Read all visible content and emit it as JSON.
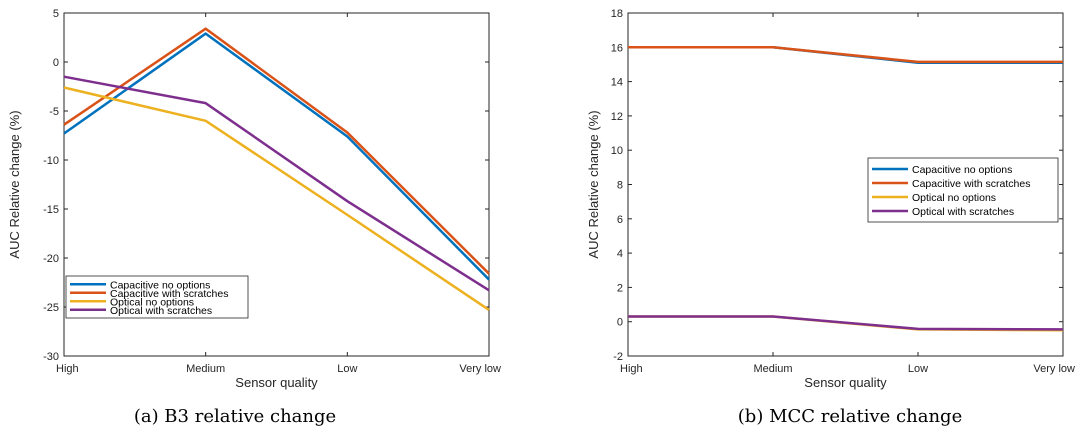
{
  "chart_data": [
    {
      "type": "line",
      "panel": "a",
      "caption": "(a) B3 relative change",
      "xlabel": "Sensor quality",
      "ylabel": "AUC Relative change (%)",
      "categories": [
        "High",
        "Medium",
        "Low",
        "Very low"
      ],
      "ylim": [
        -30,
        5
      ],
      "yticks": [
        5,
        0,
        -5,
        -10,
        -15,
        -20,
        -25,
        -30
      ],
      "ytick_labels": [
        "5",
        "0",
        "-5",
        "-10",
        "-15",
        "-20",
        "-25",
        "-30"
      ],
      "legend_position": "bottom-left",
      "series": [
        {
          "name": "Capacitive no options",
          "color": "#0072BD",
          "values": [
            -7.3,
            2.9,
            -7.6,
            -22.2
          ]
        },
        {
          "name": "Capacitive with scratches",
          "color": "#D95319",
          "values": [
            -6.4,
            3.4,
            -7.2,
            -21.6
          ]
        },
        {
          "name": "Optical no options",
          "color": "#EDB120",
          "values": [
            -2.6,
            -6.0,
            -15.6,
            -25.3
          ]
        },
        {
          "name": "Optical with scratches",
          "color": "#7E2F8E",
          "values": [
            -1.5,
            -4.2,
            -14.2,
            -23.3
          ]
        }
      ]
    },
    {
      "type": "line",
      "panel": "b",
      "caption": "(b) MCC relative change",
      "xlabel": "Sensor quality",
      "ylabel": "AUC Relative change (%)",
      "categories": [
        "High",
        "Medium",
        "Low",
        "Very low"
      ],
      "ylim": [
        -2,
        18
      ],
      "yticks": [
        18,
        16,
        14,
        12,
        10,
        8,
        6,
        4,
        2,
        0,
        -2
      ],
      "ytick_labels": [
        "18",
        "16",
        "14",
        "12",
        "10",
        "8",
        "6",
        "4",
        "2",
        "0",
        "-2"
      ],
      "legend_position": "right",
      "series": [
        {
          "name": "Capacitive no options",
          "color": "#0072BD",
          "values": [
            16.0,
            16.0,
            15.1,
            15.1
          ]
        },
        {
          "name": "Capacitive with scratches",
          "color": "#D95319",
          "values": [
            16.0,
            16.0,
            15.15,
            15.15
          ]
        },
        {
          "name": "Optical no options",
          "color": "#EDB120",
          "values": [
            0.3,
            0.3,
            -0.45,
            -0.5
          ]
        },
        {
          "name": "Optical with scratches",
          "color": "#7E2F8E",
          "values": [
            0.3,
            0.3,
            -0.42,
            -0.45
          ]
        }
      ]
    }
  ]
}
